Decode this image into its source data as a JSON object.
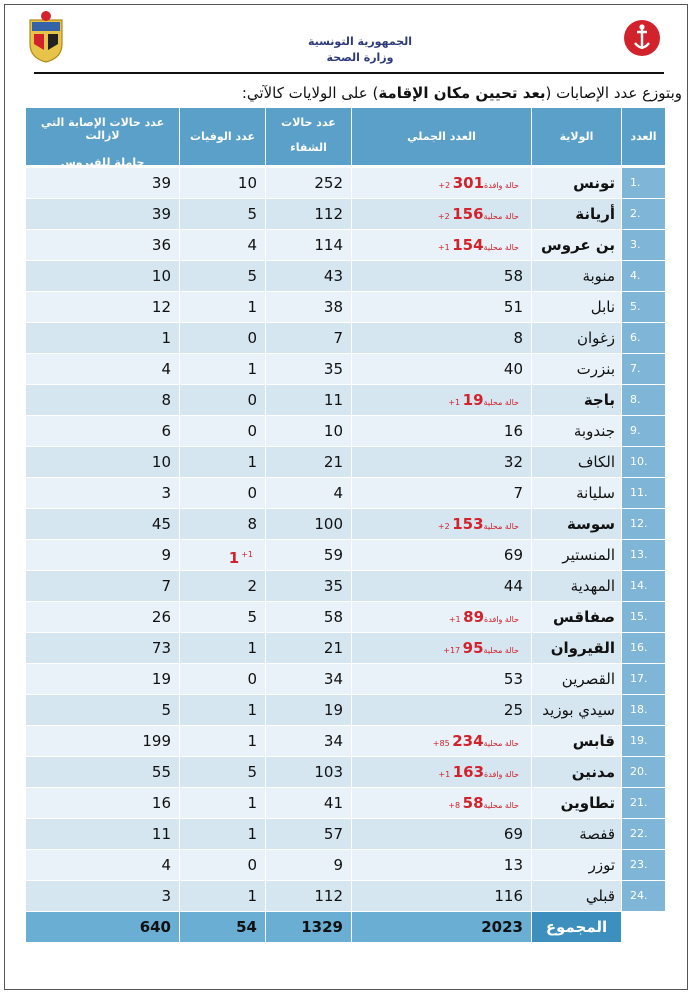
{
  "header": {
    "republic": "الجمهورية التونسية",
    "ministry": "وزارة الصحة"
  },
  "intro": {
    "prefix": "وبتوزع عدد الإصابات (",
    "bold": "بعد تحيين مكان الإقامة",
    "suffix": ") على الولايات كالآتي:"
  },
  "table": {
    "columns": {
      "no": "العدد",
      "gov": "الولاية",
      "total": "العدد الجملي",
      "recovered_1": "عدد حالات",
      "recovered_2": "الشفاء",
      "deaths": "عدد الوفيات",
      "carriers_1": "عدد حالات الإصابة التي لازالت",
      "carriers_2": "حاملة للفيروس"
    },
    "rows": [
      {
        "no": "1.",
        "gov": "تونس",
        "total": "301",
        "note": "+2 حالة وافدة",
        "recovered": "252",
        "deaths": "10",
        "carriers": "39",
        "hl": true
      },
      {
        "no": "2.",
        "gov": "أريانة",
        "total": "156",
        "note": "+2 حالة محلية",
        "recovered": "112",
        "deaths": "5",
        "carriers": "39",
        "hl": true
      },
      {
        "no": "3.",
        "gov": "بن عروس",
        "total": "154",
        "note": "+1 حالة محلية",
        "recovered": "114",
        "deaths": "4",
        "carriers": "36",
        "hl": true
      },
      {
        "no": "4.",
        "gov": "منوبة",
        "total": "58",
        "note": "",
        "recovered": "43",
        "deaths": "5",
        "carriers": "10",
        "hl": false
      },
      {
        "no": "5.",
        "gov": "نابل",
        "total": "51",
        "note": "",
        "recovered": "38",
        "deaths": "1",
        "carriers": "12",
        "hl": false
      },
      {
        "no": "6.",
        "gov": "زغوان",
        "total": "8",
        "note": "",
        "recovered": "7",
        "deaths": "0",
        "carriers": "1",
        "hl": false
      },
      {
        "no": "7.",
        "gov": "بنزرت",
        "total": "40",
        "note": "",
        "recovered": "35",
        "deaths": "1",
        "carriers": "4",
        "hl": false
      },
      {
        "no": "8.",
        "gov": "باجة",
        "total": "19",
        "note": "+1 حالة محلية",
        "recovered": "11",
        "deaths": "0",
        "carriers": "8",
        "hl": true
      },
      {
        "no": "9.",
        "gov": "جندوبة",
        "total": "16",
        "note": "",
        "recovered": "10",
        "deaths": "0",
        "carriers": "6",
        "hl": false
      },
      {
        "no": "10.",
        "gov": "الكاف",
        "total": "32",
        "note": "",
        "recovered": "21",
        "deaths": "1",
        "carriers": "10",
        "hl": false
      },
      {
        "no": "11.",
        "gov": "سليانة",
        "total": "7",
        "note": "",
        "recovered": "4",
        "deaths": "0",
        "carriers": "3",
        "hl": false
      },
      {
        "no": "12.",
        "gov": "سوسة",
        "total": "153",
        "note": "+2 حالة محلية",
        "recovered": "100",
        "deaths": "8",
        "carriers": "45",
        "hl": true
      },
      {
        "no": "13.",
        "gov": "المنستير",
        "total": "69",
        "note": "",
        "recovered": "59",
        "deaths": "1",
        "deaths_note": "+1",
        "carriers": "9",
        "hl": false
      },
      {
        "no": "14.",
        "gov": "المهدية",
        "total": "44",
        "note": "",
        "recovered": "35",
        "deaths": "2",
        "carriers": "7",
        "hl": false
      },
      {
        "no": "15.",
        "gov": "صفاقس",
        "total": "89",
        "note": "+1 حالة وافدة",
        "recovered": "58",
        "deaths": "5",
        "carriers": "26",
        "hl": true
      },
      {
        "no": "16.",
        "gov": "القيروان",
        "total": "95",
        "note": "+17 حالة محلية",
        "recovered": "21",
        "deaths": "1",
        "carriers": "73",
        "hl": true
      },
      {
        "no": "17.",
        "gov": "القصرين",
        "total": "53",
        "note": "",
        "recovered": "34",
        "deaths": "0",
        "carriers": "19",
        "hl": false
      },
      {
        "no": "18.",
        "gov": "سيدي بوزيد",
        "total": "25",
        "note": "",
        "recovered": "19",
        "deaths": "1",
        "carriers": "5",
        "hl": false
      },
      {
        "no": "19.",
        "gov": "قابس",
        "total": "234",
        "note": "+85 حالة محلية",
        "recovered": "34",
        "deaths": "1",
        "carriers": "199",
        "hl": true
      },
      {
        "no": "20.",
        "gov": "مدنين",
        "total": "163",
        "note": "+1 حالة وافدة",
        "recovered": "103",
        "deaths": "5",
        "carriers": "55",
        "hl": true
      },
      {
        "no": "21.",
        "gov": "تطاوين",
        "total": "58",
        "note": "+8 حالة محلية",
        "recovered": "41",
        "deaths": "1",
        "carriers": "16",
        "hl": true
      },
      {
        "no": "22.",
        "gov": "قفصة",
        "total": "69",
        "note": "",
        "recovered": "57",
        "deaths": "1",
        "carriers": "11",
        "hl": false
      },
      {
        "no": "23.",
        "gov": "توزر",
        "total": "13",
        "note": "",
        "recovered": "9",
        "deaths": "0",
        "carriers": "4",
        "hl": false
      },
      {
        "no": "24.",
        "gov": "قبلي",
        "total": "116",
        "note": "",
        "recovered": "112",
        "deaths": "1",
        "carriers": "3",
        "hl": false
      }
    ],
    "totals": {
      "label": "المجموع",
      "total": "2023",
      "recovered": "1329",
      "deaths": "54",
      "carriers": "640"
    }
  }
}
